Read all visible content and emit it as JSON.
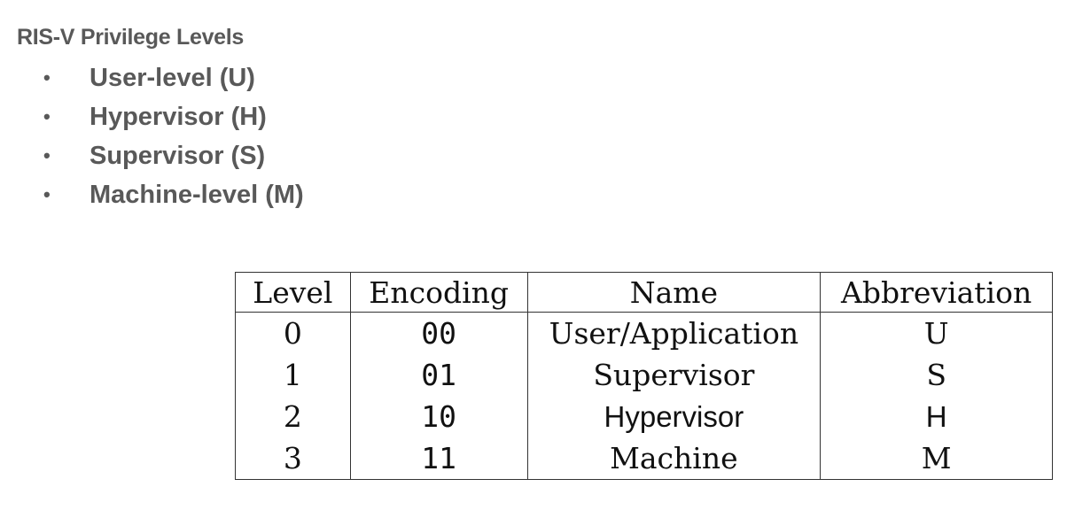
{
  "title": "RIS-V Privilege Levels",
  "bullets": [
    "User-level (U)",
    "Hypervisor (H)",
    "Supervisor (S)",
    "Machine-level (M)"
  ],
  "table": {
    "headers": [
      "Level",
      "Encoding",
      "Name",
      "Abbreviation"
    ],
    "rows": [
      [
        "0",
        "00",
        "User/Application",
        "U"
      ],
      [
        "1",
        "01",
        "Supervisor",
        "S"
      ],
      [
        "2",
        "10",
        "Hypervisor",
        "H"
      ],
      [
        "3",
        "11",
        "Machine",
        "M"
      ]
    ]
  }
}
